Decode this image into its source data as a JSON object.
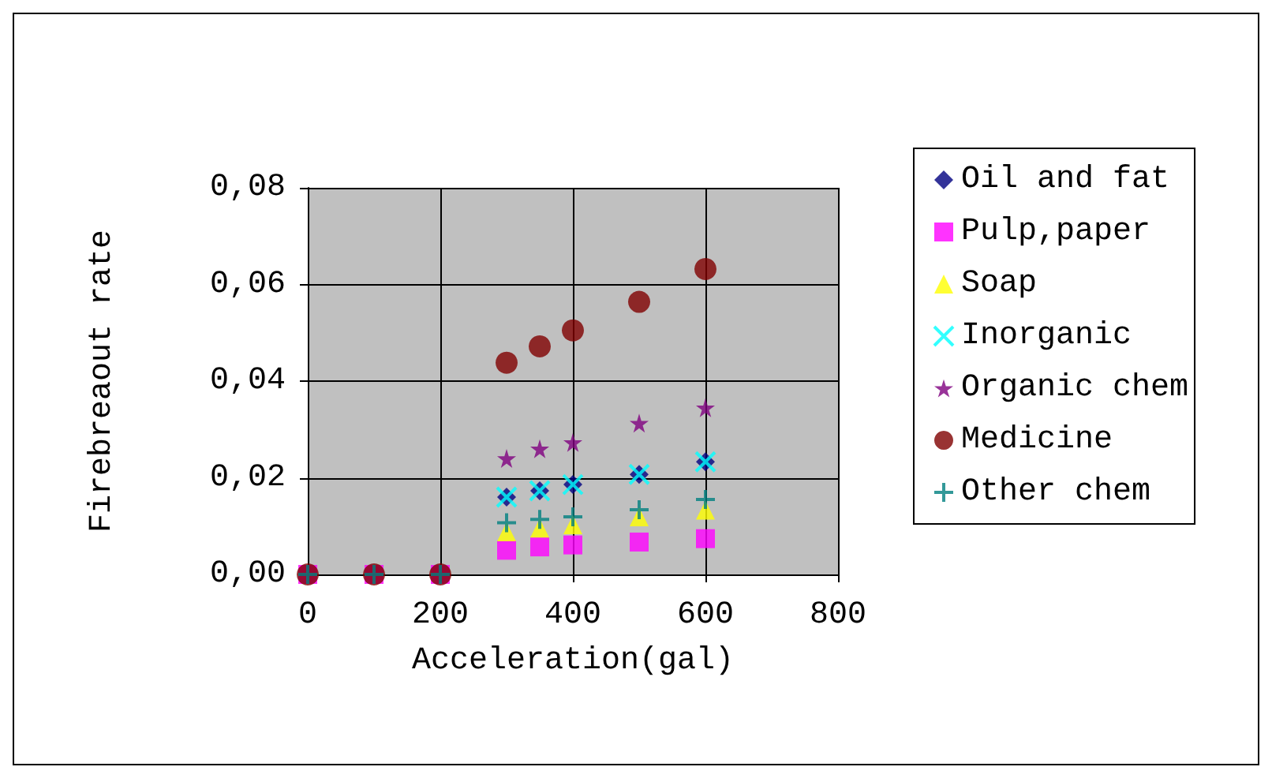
{
  "chart_data": {
    "type": "scatter",
    "xlabel": "Acceleration(gal)",
    "ylabel": "Firebreaout rate",
    "x": [
      0,
      100,
      200,
      300,
      350,
      400,
      500,
      600
    ],
    "series": [
      {
        "name": "Oil and fat",
        "color": "#000080",
        "marker": "diamond",
        "values": [
          null,
          null,
          null,
          0.016,
          0.0173,
          0.0186,
          0.0207,
          0.0233
        ]
      },
      {
        "name": "Pulp,paper",
        "color": "#ff00ff",
        "marker": "square",
        "values": [
          0,
          0,
          0,
          0.005,
          0.0057,
          0.0061,
          0.0067,
          0.0074
        ]
      },
      {
        "name": "Soap",
        "color": "#ffff00",
        "marker": "triangle",
        "values": [
          null,
          null,
          null,
          0.0088,
          0.0096,
          0.0103,
          0.0119,
          0.0133
        ]
      },
      {
        "name": "Inorganic",
        "color": "#00ffff",
        "marker": "x",
        "values": [
          null,
          null,
          null,
          0.016,
          0.0173,
          0.0186,
          0.0207,
          0.0233
        ]
      },
      {
        "name": "Organic chem",
        "color": "#800080",
        "marker": "star",
        "values": [
          null,
          null,
          null,
          0.024,
          0.026,
          0.0273,
          0.0313,
          0.0345
        ]
      },
      {
        "name": "Medicine",
        "color": "#800000",
        "marker": "circle",
        "values": [
          0,
          0,
          0,
          0.0438,
          0.0472,
          0.0505,
          0.0564,
          0.0632
        ]
      },
      {
        "name": "Other chem",
        "color": "#008080",
        "marker": "plus",
        "values": [
          0,
          0,
          0,
          0.0107,
          0.0114,
          0.0119,
          0.0134,
          0.0155
        ]
      }
    ],
    "xlim": [
      0,
      800
    ],
    "xticks": [
      0,
      200,
      400,
      600,
      800
    ],
    "ylim": [
      0,
      0.08
    ],
    "yticks": [
      {
        "value": 0,
        "label": "0,00"
      },
      {
        "value": 0.02,
        "label": "0,02"
      },
      {
        "value": 0.04,
        "label": "0,04"
      },
      {
        "value": 0.06,
        "label": "0,06"
      },
      {
        "value": 0.08,
        "label": "0,08"
      }
    ],
    "grid": true,
    "legend": "right"
  }
}
